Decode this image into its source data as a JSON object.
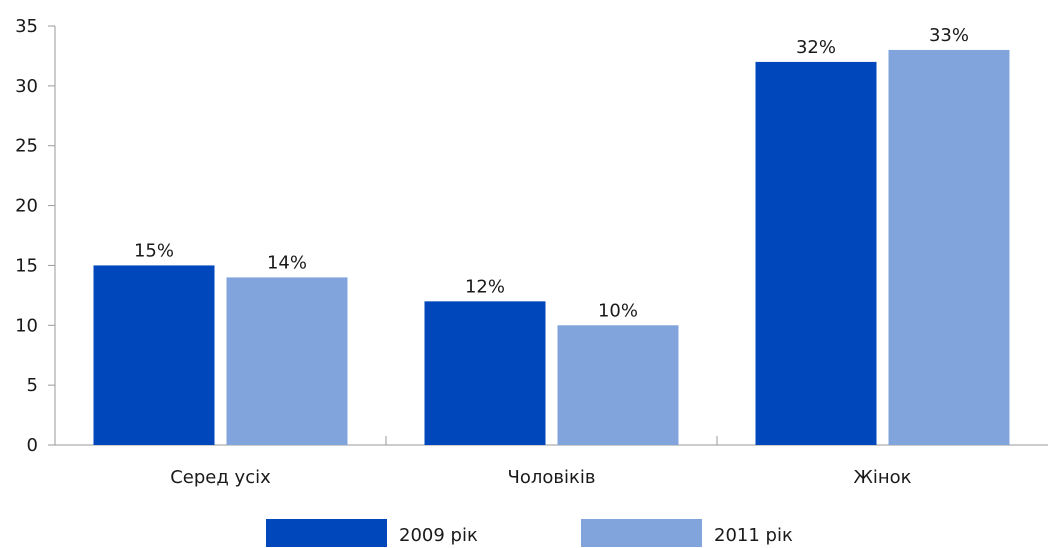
{
  "chart_data": {
    "type": "bar",
    "title": "",
    "xlabel": "",
    "ylabel": "",
    "categories": [
      "Серед усіх",
      "Чоловіків",
      "Жінок"
    ],
    "series": [
      {
        "name": "2009 рік",
        "values": [
          15,
          12,
          32
        ],
        "labels": [
          "15%",
          "12%",
          "32%"
        ],
        "color": "#0047BB"
      },
      {
        "name": "2011 рік",
        "values": [
          14,
          10,
          33
        ],
        "labels": [
          "14%",
          "10%",
          "33%"
        ],
        "color": "#81A4DC"
      }
    ],
    "ylim": [
      0,
      35
    ],
    "yticks": [
      0,
      5,
      10,
      15,
      20,
      25,
      30,
      35
    ],
    "ytick_labels": [
      "0",
      "5",
      "10",
      "15",
      "20",
      "25",
      "30",
      "35"
    ],
    "grid": false,
    "legend_position": "bottom-center",
    "axis_color": "#9a9a9a"
  }
}
